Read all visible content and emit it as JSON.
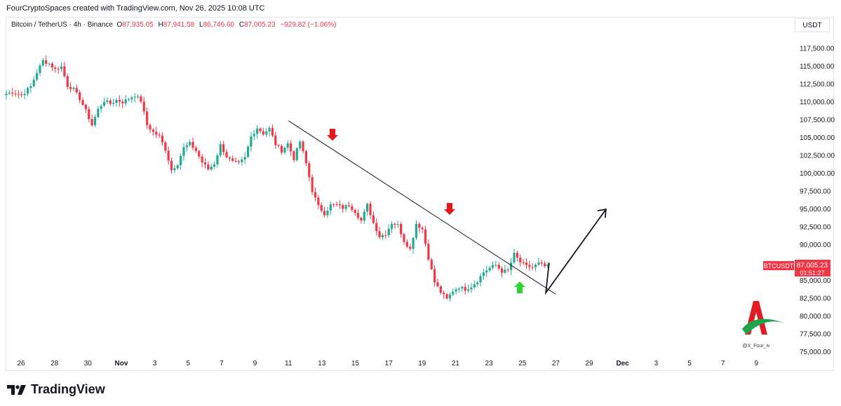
{
  "header": {
    "text": "FourCryptoSpaces created with TradingView.com, Nov 26, 2025 10:08 UTC"
  },
  "legend": {
    "symbol": "Bitcoin / TetherUS · 4h · Binance",
    "o_label": "O",
    "o": "87,935.05",
    "h_label": "H",
    "h": "87,941.58",
    "l_label": "L",
    "l": "86,746.60",
    "c_label": "C",
    "c": "87,005.23",
    "change": "−929.82 (−1.06%)"
  },
  "currency_button": "USDT",
  "price_tag": {
    "symbol": "BTCUSDT",
    "price": "87,005.23",
    "countdown": "01:51:27"
  },
  "watermark": {
    "handle": "@X_Four_iv"
  },
  "footer": {
    "brand": "TradingView"
  },
  "colors": {
    "up": "#22ab94",
    "down": "#f23645",
    "arrow_down": "#e8161b",
    "arrow_up": "#2ed52e"
  },
  "chart_data": {
    "type": "candlestick",
    "timeframe": "4h",
    "y_ticks": [
      117500,
      115000,
      112500,
      110000,
      107500,
      105000,
      102500,
      100000,
      97500,
      95000,
      92500,
      90000,
      87500,
      85000,
      82500,
      80000,
      77500,
      75000
    ],
    "y_tick_labels": [
      "117,500.00",
      "115,000.00",
      "112,500.00",
      "110,000.00",
      "107,500.00",
      "105,000.00",
      "102,500.00",
      "100,000.00",
      "97,500.00",
      "95,000.00",
      "92,500.00",
      "90,000.00",
      "87,500.00",
      "85,000.00",
      "82,500.00",
      "80,000.00",
      "77,500.00",
      "75,000.00"
    ],
    "x_ticks": [
      "26",
      "28",
      "30",
      "Nov",
      "3",
      "5",
      "7",
      "9",
      "11",
      "13",
      "15",
      "17",
      "19",
      "21",
      "23",
      "25",
      "27",
      "29",
      "Dec",
      "3",
      "5",
      "7",
      "9"
    ],
    "ylim": [
      74000,
      121500
    ],
    "grid": false,
    "anchors": [
      [
        0,
        111200
      ],
      [
        2,
        111400
      ],
      [
        5,
        111000
      ],
      [
        8,
        112200
      ],
      [
        10,
        114200
      ],
      [
        12,
        115800
      ],
      [
        14,
        115400
      ],
      [
        16,
        114600
      ],
      [
        18,
        115000
      ],
      [
        20,
        112300
      ],
      [
        22,
        111800
      ],
      [
        24,
        110500
      ],
      [
        26,
        108800
      ],
      [
        28,
        106800
      ],
      [
        30,
        109000
      ],
      [
        32,
        110200
      ],
      [
        34,
        109800
      ],
      [
        36,
        110300
      ],
      [
        38,
        110000
      ],
      [
        40,
        110500
      ],
      [
        42,
        111000
      ],
      [
        44,
        110200
      ],
      [
        46,
        106800
      ],
      [
        48,
        105800
      ],
      [
        50,
        105200
      ],
      [
        52,
        103400
      ],
      [
        54,
        100500
      ],
      [
        56,
        101400
      ],
      [
        58,
        103600
      ],
      [
        60,
        104200
      ],
      [
        62,
        103200
      ],
      [
        64,
        101600
      ],
      [
        66,
        100600
      ],
      [
        68,
        101400
      ],
      [
        70,
        104000
      ],
      [
        72,
        102400
      ],
      [
        74,
        101600
      ],
      [
        76,
        101400
      ],
      [
        78,
        102200
      ],
      [
        80,
        105200
      ],
      [
        82,
        106400
      ],
      [
        84,
        105600
      ],
      [
        86,
        106300
      ],
      [
        88,
        104100
      ],
      [
        90,
        103200
      ],
      [
        92,
        104200
      ],
      [
        94,
        102100
      ],
      [
        96,
        104500
      ],
      [
        98,
        101400
      ],
      [
        100,
        97600
      ],
      [
        102,
        95400
      ],
      [
        104,
        94400
      ],
      [
        106,
        95600
      ],
      [
        108,
        95600
      ],
      [
        110,
        95200
      ],
      [
        112,
        95600
      ],
      [
        114,
        94700
      ],
      [
        116,
        93400
      ],
      [
        118,
        95600
      ],
      [
        120,
        93100
      ],
      [
        122,
        91200
      ],
      [
        124,
        91600
      ],
      [
        126,
        93100
      ],
      [
        128,
        92800
      ],
      [
        130,
        90600
      ],
      [
        132,
        89400
      ],
      [
        134,
        93000
      ],
      [
        136,
        92200
      ],
      [
        138,
        88200
      ],
      [
        140,
        84800
      ],
      [
        142,
        83400
      ],
      [
        144,
        82400
      ],
      [
        146,
        83600
      ],
      [
        148,
        84100
      ],
      [
        150,
        83800
      ],
      [
        152,
        84200
      ],
      [
        154,
        85000
      ],
      [
        156,
        86200
      ],
      [
        158,
        86800
      ],
      [
        160,
        87200
      ],
      [
        162,
        86300
      ],
      [
        164,
        86400
      ],
      [
        166,
        88700
      ],
      [
        168,
        87600
      ],
      [
        170,
        87000
      ],
      [
        172,
        86900
      ],
      [
        174,
        87400
      ],
      [
        176,
        87005
      ]
    ],
    "annotations": {
      "trendline": [
        [
          0,
          107400
        ],
        [
          12.5,
          83100
        ]
      ],
      "projection": [
        [
          12.2,
          83300
        ],
        [
          13.0,
          95000
        ]
      ],
      "down_arrows": [
        [
          3.1,
          106000
        ],
        [
          9.7,
          94400
        ]
      ],
      "up_arrows": [
        [
          11.35,
          84400
        ]
      ]
    }
  }
}
